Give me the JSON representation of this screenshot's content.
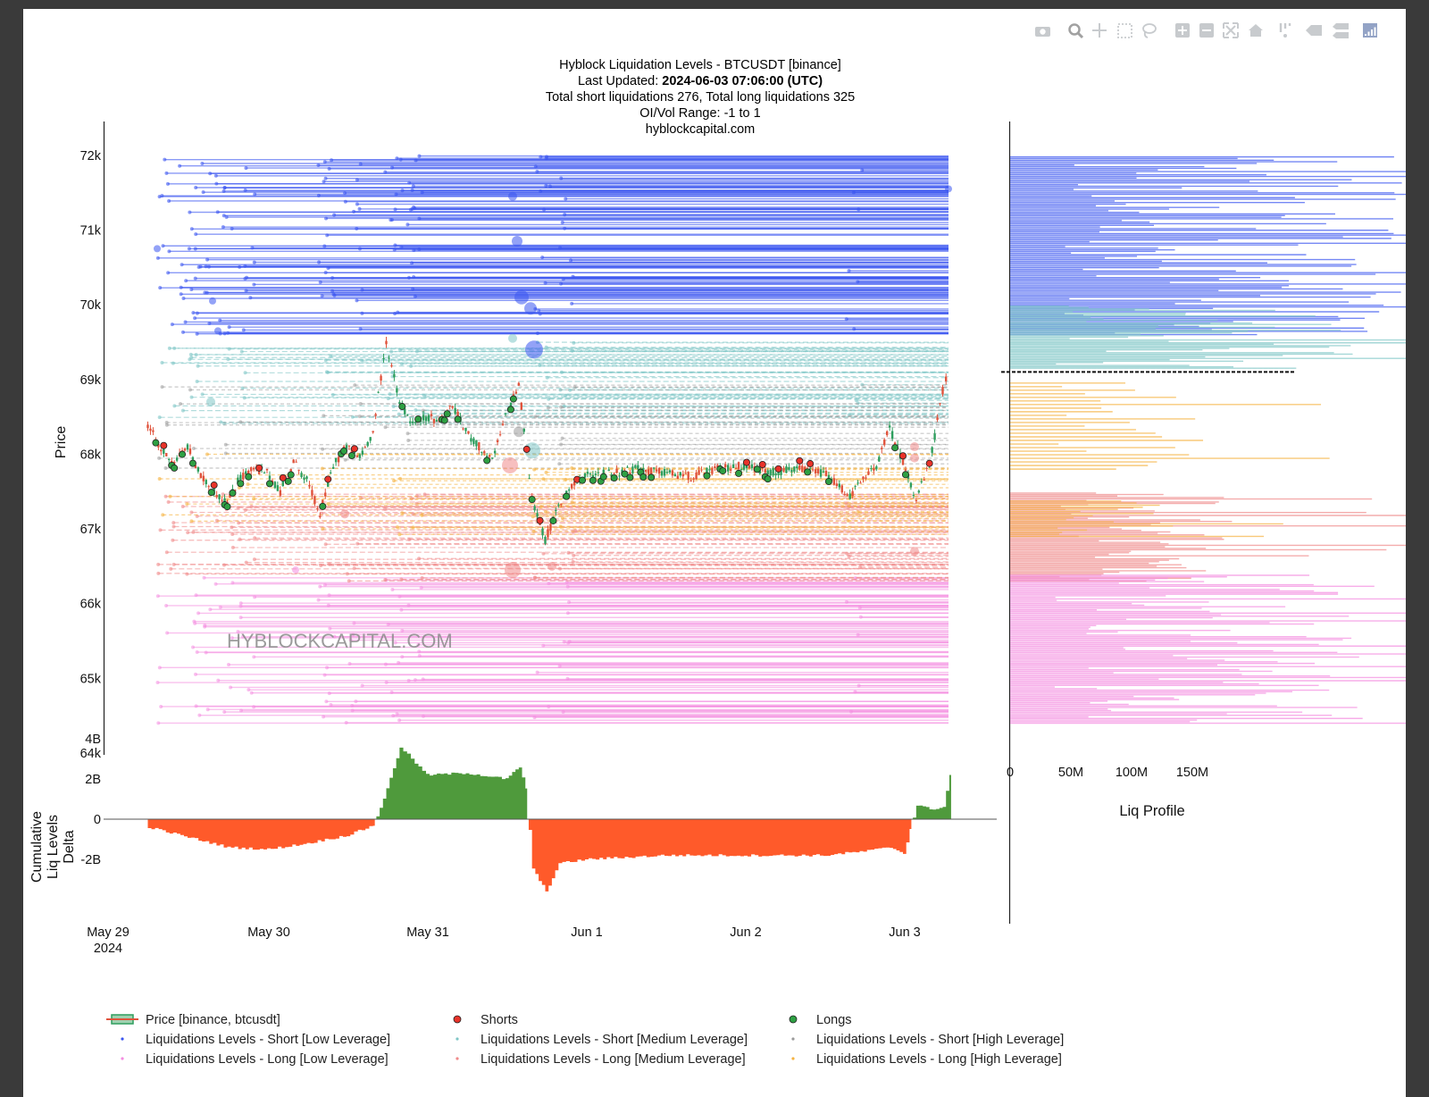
{
  "modebar": {
    "buttons": [
      "camera-icon",
      "zoom-icon",
      "pan-icon",
      "box-select-icon",
      "lasso-select-icon",
      "zoom-in-icon",
      "zoom-out-icon",
      "autoscale-icon",
      "reset-axes-icon",
      "spike-lines-icon",
      "hover-closest-icon",
      "hover-compare-icon",
      "plotly-logo-icon"
    ]
  },
  "title": {
    "line1": "Hyblock Liquidation Levels - BTCUSDT [binance]",
    "line2_prefix": "Last Updated: ",
    "line2_bold": "2024-06-03 07:06:00 (UTC)",
    "line3": "Total short liquidations 276, Total long liquidations 325",
    "line4": "OI/Vol Range: -1 to 1",
    "line5": "hyblockcapital.com"
  },
  "watermark": "HYBLOCKCAPITAL.COM",
  "colors": {
    "short_low": "#3a55f0",
    "short_medium": "#7fc6c6",
    "short_high": "#9a9a9a",
    "long_low": "#f48ce0",
    "long_medium": "#f08a8a",
    "long_high": "#f5b240",
    "price_up": "#2e9e5e",
    "price_down": "#e0533c",
    "shorts_marker": "#e8332a",
    "longs_marker": "#2ea043",
    "delta_pos": "#4f9a3c",
    "delta_neg": "#ff5a2a"
  },
  "chart_data": [
    {
      "type": "line",
      "name": "main-price",
      "ylabel": "Price",
      "ylim": [
        64000,
        72500
      ],
      "yticks": [
        "64k",
        "65k",
        "66k",
        "67k",
        "68k",
        "69k",
        "70k",
        "71k",
        "72k"
      ],
      "ytick_values": [
        64000,
        65000,
        66000,
        67000,
        68000,
        69000,
        70000,
        71000,
        72000
      ],
      "xticks": [
        "May 29",
        "May 30",
        "May 31",
        "Jun 1",
        "Jun 2",
        "Jun 3"
      ],
      "xtick_year": "2024",
      "xlim": [
        "2024-05-29 00:00",
        "2024-06-03 16:00"
      ],
      "series": [
        {
          "name": "Price [binance, btcusdt]",
          "x": [
            "2024-05-29 06:00",
            "2024-05-29 08:00",
            "2024-05-29 10:00",
            "2024-05-29 12:00",
            "2024-05-29 14:00",
            "2024-05-29 16:00",
            "2024-05-29 18:00",
            "2024-05-29 20:00",
            "2024-05-29 22:00",
            "2024-05-30 00:00",
            "2024-05-30 02:00",
            "2024-05-30 04:00",
            "2024-05-30 06:00",
            "2024-05-30 08:00",
            "2024-05-30 10:00",
            "2024-05-30 12:00",
            "2024-05-30 14:00",
            "2024-05-30 16:00",
            "2024-05-30 18:00",
            "2024-05-30 20:00",
            "2024-05-30 22:00",
            "2024-05-31 00:00",
            "2024-05-31 02:00",
            "2024-05-31 04:00",
            "2024-05-31 06:00",
            "2024-05-31 08:00",
            "2024-05-31 10:00",
            "2024-05-31 12:00",
            "2024-05-31 14:00",
            "2024-05-31 16:00",
            "2024-05-31 18:00",
            "2024-05-31 20:00",
            "2024-05-31 22:00",
            "2024-06-01 00:00",
            "2024-06-01 04:00",
            "2024-06-01 08:00",
            "2024-06-01 12:00",
            "2024-06-01 16:00",
            "2024-06-01 20:00",
            "2024-06-02 00:00",
            "2024-06-02 04:00",
            "2024-06-02 08:00",
            "2024-06-02 12:00",
            "2024-06-02 16:00",
            "2024-06-02 20:00",
            "2024-06-02 22:00",
            "2024-06-03 00:00",
            "2024-06-03 02:00",
            "2024-06-03 04:00",
            "2024-06-03 06:00",
            "2024-06-03 07:00"
          ],
          "values": [
            68400,
            68050,
            67900,
            68100,
            67700,
            67500,
            67350,
            67700,
            67800,
            67750,
            67500,
            67900,
            67650,
            67200,
            67850,
            68100,
            67950,
            68300,
            69500,
            68700,
            68400,
            68500,
            68450,
            68650,
            68300,
            68100,
            67900,
            68500,
            68950,
            67400,
            66850,
            67300,
            67600,
            67700,
            67750,
            67800,
            67750,
            67700,
            67800,
            67850,
            67750,
            67800,
            67750,
            67450,
            67850,
            68350,
            67900,
            67400,
            67850,
            68850,
            69150
          ]
        }
      ]
    },
    {
      "type": "area",
      "name": "cumulative-delta",
      "ylabel": "Cumulative Liq Levels Delta",
      "ylim": [
        -3500000000,
        4000000000
      ],
      "yticks": [
        "4B",
        "2B",
        "0",
        "-2B"
      ],
      "ytick_values": [
        4000000000,
        2000000000,
        0,
        -2000000000
      ],
      "series": [
        {
          "name": "Cumulative Liq Levels Delta",
          "x": [
            "2024-05-29 06:00",
            "2024-05-29 12:00",
            "2024-05-29 18:00",
            "2024-05-30 00:00",
            "2024-05-30 06:00",
            "2024-05-30 12:00",
            "2024-05-30 16:00",
            "2024-05-30 18:00",
            "2024-05-30 20:00",
            "2024-05-31 00:00",
            "2024-05-31 06:00",
            "2024-05-31 12:00",
            "2024-05-31 14:00",
            "2024-05-31 15:00",
            "2024-05-31 16:00",
            "2024-05-31 18:00",
            "2024-05-31 20:00",
            "2024-06-01 00:00",
            "2024-06-01 12:00",
            "2024-06-02 00:00",
            "2024-06-02 12:00",
            "2024-06-02 18:00",
            "2024-06-02 22:00",
            "2024-06-03 00:00",
            "2024-06-03 02:00",
            "2024-06-03 04:00",
            "2024-06-03 06:00",
            "2024-06-03 07:00"
          ],
          "values": [
            -400000000,
            -900000000,
            -1400000000,
            -1500000000,
            -1200000000,
            -800000000,
            -300000000,
            1500000000,
            3600000000,
            2200000000,
            2300000000,
            2000000000,
            2600000000,
            1500000000,
            -2500000000,
            -3600000000,
            -2200000000,
            -2000000000,
            -1800000000,
            -1800000000,
            -1800000000,
            -1600000000,
            -1400000000,
            -1700000000,
            700000000,
            500000000,
            600000000,
            2200000000
          ]
        }
      ]
    },
    {
      "type": "bar",
      "name": "liq-profile",
      "xlabel": "Liq Profile",
      "xticks": [
        "0",
        "50M",
        "100M",
        "150M"
      ],
      "xtick_values": [
        0,
        50000000,
        100000000,
        150000000
      ],
      "ylim": [
        64000,
        72500
      ]
    }
  ],
  "legend": {
    "price": "Price [binance, btcusdt]",
    "shorts": "Shorts",
    "longs": "Longs",
    "short_low": "Liquidations Levels - Short [Low Leverage]",
    "short_medium": "Liquidations Levels - Short [Medium Leverage]",
    "short_high": "Liquidations Levels - Short [High Leverage]",
    "long_low": "Liquidations Levels - Long [Low Leverage]",
    "long_medium": "Liquidations Levels - Long [Medium Leverage]",
    "long_high": "Liquidations Levels - Long [High Leverage]"
  }
}
